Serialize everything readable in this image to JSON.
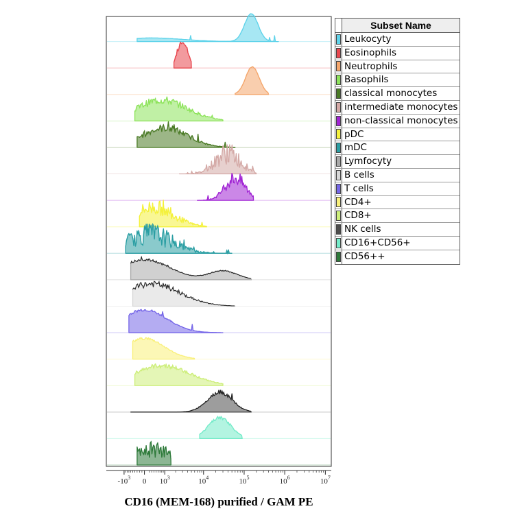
{
  "chart_data": {
    "type": "histogram-overlay",
    "xlabel": "CD16 (MEM-168) purified / GAM PE",
    "x_scale": "biexponential",
    "x_ticks": [
      {
        "base": "-10",
        "exp": "3",
        "value": -1000
      },
      {
        "base": "0",
        "exp": "",
        "value": 0
      },
      {
        "base": "10",
        "exp": "3",
        "value": 1000
      },
      {
        "base": "10",
        "exp": "4",
        "value": 10000
      },
      {
        "base": "10",
        "exp": "5",
        "value": 100000
      },
      {
        "base": "10",
        "exp": "6",
        "value": 1000000
      },
      {
        "base": "10",
        "exp": "7",
        "value": 10000000
      }
    ],
    "legend": {
      "title": "Subset Name",
      "placement": "right"
    },
    "series": [
      {
        "name": "Leukocyty",
        "color": "#5fd3ea",
        "peaks": [
          {
            "x": 300,
            "w": 0.55,
            "h": 0.13
          },
          {
            "x": 150000,
            "w": 0.12,
            "h": 1.0
          }
        ],
        "noise": 0.02,
        "range": [
          -300,
          700000
        ]
      },
      {
        "name": "Eosinophils",
        "color": "#e8474f",
        "peaks": [
          {
            "x": 3000,
            "w": 0.09,
            "h": 1.0
          }
        ],
        "noise": 0.12,
        "range": [
          1800,
          5000
        ]
      },
      {
        "name": "Neutrophils",
        "color": "#f4a66c",
        "peaks": [
          {
            "x": 160000,
            "w": 0.12,
            "h": 1.0
          }
        ],
        "noise": 0.02,
        "range": [
          60000,
          400000
        ]
      },
      {
        "name": "Basophils",
        "color": "#8de35b",
        "peaks": [
          {
            "x": 800,
            "w": 0.45,
            "h": 0.75
          }
        ],
        "noise": 0.2,
        "range": [
          -400,
          30000
        ]
      },
      {
        "name": "classical monocytes",
        "color": "#4a7a25",
        "peaks": [
          {
            "x": 1000,
            "w": 0.4,
            "h": 0.7
          }
        ],
        "noise": 0.2,
        "range": [
          -300,
          60000
        ]
      },
      {
        "name": "intermediate monocytes",
        "color": "#d4a9a6",
        "peaks": [
          {
            "x": 40000,
            "w": 0.22,
            "h": 0.75
          }
        ],
        "noise": 0.55,
        "range": [
          2500,
          200000
        ]
      },
      {
        "name": "non-classical monocytes",
        "color": "#a124d4",
        "peaks": [
          {
            "x": 60000,
            "w": 0.18,
            "h": 0.8
          }
        ],
        "noise": 0.35,
        "range": [
          7000,
          170000
        ]
      },
      {
        "name": "pDC",
        "color": "#f4f13c",
        "peaks": [
          {
            "x": 400,
            "w": 0.35,
            "h": 0.7
          }
        ],
        "noise": 0.4,
        "range": [
          -200,
          12000
        ]
      },
      {
        "name": "mDC",
        "color": "#2a9ea3",
        "peaks": [
          {
            "x": 200,
            "w": 0.4,
            "h": 0.7
          }
        ],
        "noise": 0.6,
        "range": [
          -900,
          50000
        ]
      },
      {
        "name": "Lymfocyty",
        "color": "#aaaaaa",
        "peaks": [
          {
            "x": 0,
            "w": 0.45,
            "h": 0.72
          },
          {
            "x": 30000,
            "w": 0.25,
            "h": 0.32
          }
        ],
        "noise": 0.06,
        "range": [
          -600,
          150000
        ]
      },
      {
        "name": "B cells",
        "color": "#d8d8d8",
        "peaks": [
          {
            "x": 300,
            "w": 0.5,
            "h": 0.8
          }
        ],
        "noise": 0.15,
        "range": [
          -500,
          60000
        ]
      },
      {
        "name": "T cells",
        "color": "#7667e8",
        "peaks": [
          {
            "x": 0,
            "w": 0.4,
            "h": 0.82
          }
        ],
        "noise": 0.06,
        "range": [
          -700,
          30000
        ]
      },
      {
        "name": "CD4+",
        "color": "#f9f07a",
        "peaks": [
          {
            "x": 0,
            "w": 0.35,
            "h": 0.75
          }
        ],
        "noise": 0.06,
        "range": [
          -500,
          6000
        ]
      },
      {
        "name": "CD8+",
        "color": "#cdee7a",
        "peaks": [
          {
            "x": 800,
            "w": 0.5,
            "h": 0.72
          }
        ],
        "noise": 0.12,
        "range": [
          -400,
          30000
        ]
      },
      {
        "name": "NK cells",
        "color": "#4d4d4d",
        "peaks": [
          {
            "x": 25000,
            "w": 0.22,
            "h": 0.72
          }
        ],
        "noise": 0.1,
        "range": [
          -600,
          150000
        ]
      },
      {
        "name": "CD16+CD56+",
        "color": "#74ebc9",
        "peaks": [
          {
            "x": 25000,
            "w": 0.2,
            "h": 0.75
          }
        ],
        "noise": 0.08,
        "range": [
          8000,
          90000
        ]
      },
      {
        "name": "CD56++",
        "color": "#2e7a3a",
        "peaks": [
          {
            "x": 200,
            "w": 0.35,
            "h": 0.6
          }
        ],
        "noise": 0.55,
        "range": [
          -300,
          1500
        ]
      }
    ]
  }
}
